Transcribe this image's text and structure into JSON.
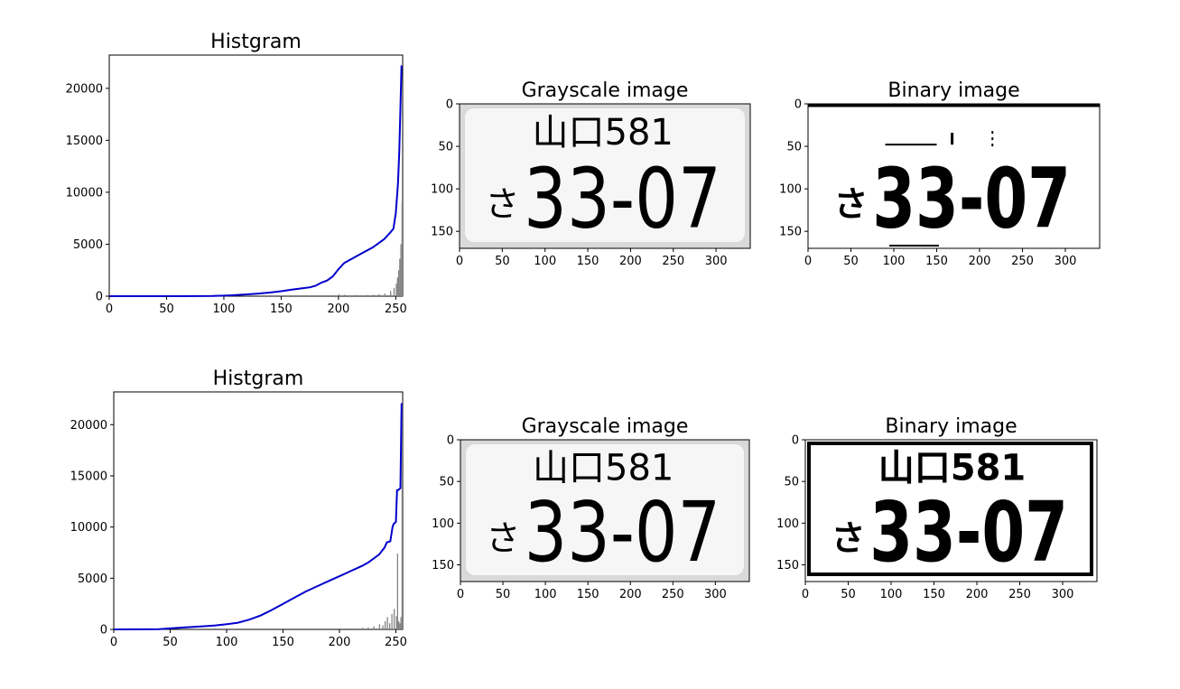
{
  "colors": {
    "cdf": "#0000cc",
    "histogram": "#808080",
    "axes": "#000000"
  },
  "chart_data": [
    {
      "type": "line",
      "title": "Histgram",
      "xlim": [
        0,
        256
      ],
      "ylim": [
        0,
        23200
      ],
      "xticks": [
        0,
        50,
        100,
        150,
        200,
        250
      ],
      "yticks": [
        0,
        5000,
        10000,
        15000,
        20000
      ],
      "cdf_series": {
        "x": [
          0,
          60,
          90,
          100,
          110,
          120,
          130,
          140,
          150,
          160,
          170,
          175,
          180,
          185,
          190,
          195,
          200,
          205,
          210,
          220,
          230,
          240,
          245,
          248,
          250,
          251,
          252,
          253,
          254,
          255
        ],
        "values": [
          0,
          0,
          20,
          50,
          100,
          170,
          250,
          350,
          480,
          640,
          780,
          850,
          1000,
          1300,
          1500,
          1900,
          2600,
          3200,
          3500,
          4100,
          4700,
          5500,
          6100,
          6500,
          8000,
          9500,
          11000,
          13800,
          18000,
          22200
        ]
      },
      "histogram_series": {
        "x": [
          195,
          200,
          205,
          210,
          215,
          220,
          225,
          230,
          235,
          240,
          245,
          248,
          250,
          251,
          252,
          253,
          254,
          255
        ],
        "values": [
          100,
          200,
          150,
          100,
          120,
          100,
          120,
          150,
          200,
          250,
          500,
          800,
          1200,
          1800,
          2500,
          3600,
          5000,
          9000
        ]
      }
    },
    {
      "type": "image",
      "title": "Grayscale image",
      "xlim": [
        0,
        340
      ],
      "ylim": [
        170,
        0
      ],
      "xticks": [
        0,
        50,
        100,
        150,
        200,
        250,
        300
      ],
      "yticks": [
        0,
        50,
        100,
        150
      ],
      "plate_top": "山口581",
      "plate_kana": "さ",
      "plate_number": "33-07"
    },
    {
      "type": "image",
      "title": "Binary image",
      "xlim": [
        0,
        340
      ],
      "ylim": [
        170,
        0
      ],
      "xticks": [
        0,
        50,
        100,
        150,
        200,
        250,
        300
      ],
      "yticks": [
        0,
        50,
        100,
        150
      ],
      "plate_top": "",
      "plate_kana": "さ",
      "plate_number": "33-07"
    },
    {
      "type": "line",
      "title": "Histgram",
      "xlim": [
        0,
        256
      ],
      "ylim": [
        0,
        23200
      ],
      "xticks": [
        0,
        50,
        100,
        150,
        200,
        250
      ],
      "yticks": [
        0,
        5000,
        10000,
        15000,
        20000
      ],
      "cdf_series": {
        "x": [
          0,
          40,
          50,
          60,
          70,
          80,
          90,
          100,
          110,
          120,
          130,
          140,
          150,
          160,
          170,
          180,
          190,
          200,
          210,
          220,
          225,
          230,
          235,
          240,
          242,
          245,
          247,
          248,
          250,
          251,
          252,
          254,
          255
        ],
        "values": [
          0,
          20,
          100,
          180,
          240,
          310,
          390,
          500,
          650,
          950,
          1350,
          1900,
          2500,
          3100,
          3700,
          4200,
          4700,
          5200,
          5700,
          6200,
          6500,
          6900,
          7300,
          8000,
          8500,
          8600,
          10000,
          10300,
          10500,
          13600,
          13600,
          13800,
          22100
        ]
      },
      "histogram_series": {
        "x": [
          200,
          210,
          220,
          225,
          230,
          235,
          238,
          240,
          242,
          244,
          246,
          248,
          250,
          251,
          252,
          253,
          254,
          255
        ],
        "values": [
          80,
          100,
          150,
          200,
          300,
          500,
          400,
          800,
          1200,
          600,
          1500,
          2000,
          1300,
          7400,
          800,
          600,
          1200,
          22000
        ]
      }
    },
    {
      "type": "image",
      "title": "Grayscale image",
      "xlim": [
        0,
        340
      ],
      "ylim": [
        170,
        0
      ],
      "xticks": [
        0,
        50,
        100,
        150,
        200,
        250,
        300
      ],
      "yticks": [
        0,
        50,
        100,
        150
      ],
      "plate_top": "山口581",
      "plate_kana": "さ",
      "plate_number": "33-07"
    },
    {
      "type": "image",
      "title": "Binary image",
      "xlim": [
        0,
        340
      ],
      "ylim": [
        170,
        0
      ],
      "xticks": [
        0,
        50,
        100,
        150,
        200,
        250,
        300
      ],
      "yticks": [
        0,
        50,
        100,
        150
      ],
      "plate_top": "山口581",
      "plate_kana": "さ",
      "plate_number": "33-07"
    }
  ]
}
